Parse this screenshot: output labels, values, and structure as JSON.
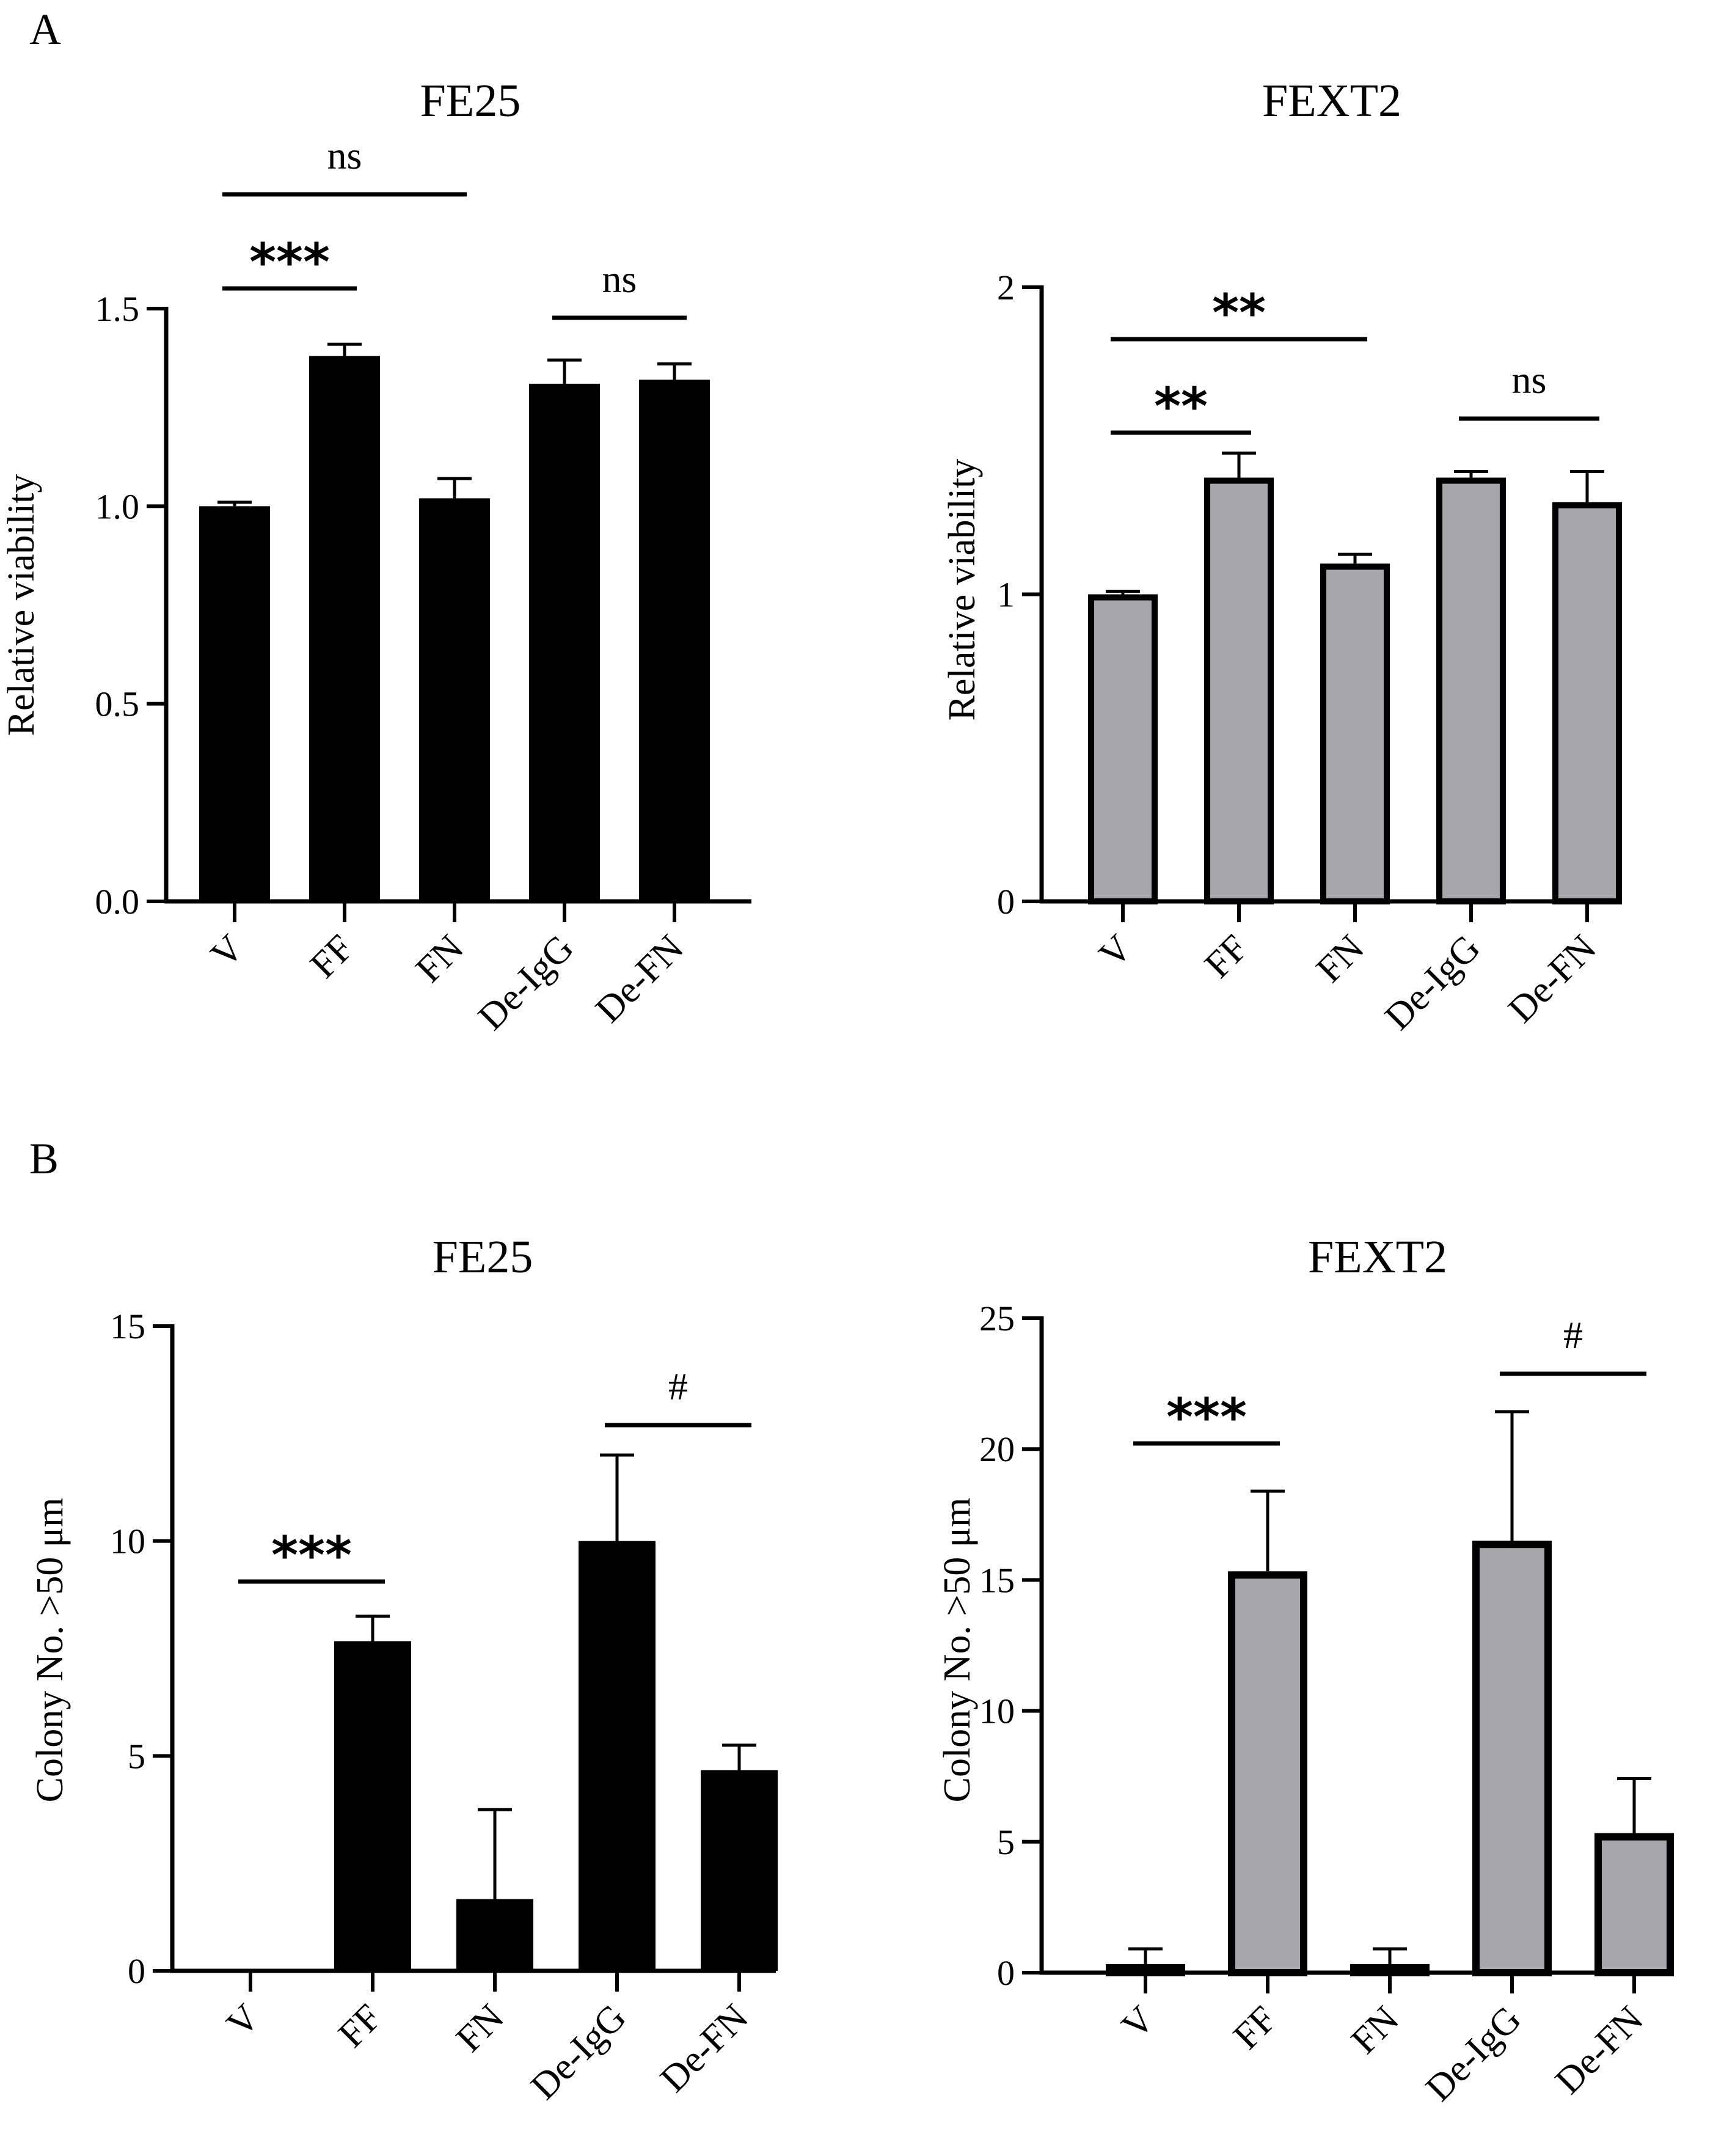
{
  "panels": [
    {
      "label": "A"
    },
    {
      "label": "B"
    }
  ],
  "colors": {
    "black_fill": "#000000",
    "gray_fill": "#a6a6ab",
    "axis": "#000000"
  },
  "chart_data": [
    {
      "id": "a-left",
      "type": "bar",
      "title": "FE25",
      "ylabel": "Relative viability",
      "categories": [
        "V",
        "FF",
        "FN",
        "De-IgG",
        "De-FN"
      ],
      "values": [
        1.0,
        1.38,
        1.02,
        1.31,
        1.32
      ],
      "errors": [
        0.01,
        0.03,
        0.05,
        0.06,
        0.04
      ],
      "ylim": [
        0,
        1.5
      ],
      "yticks": [
        0.0,
        0.5,
        1.0,
        1.5
      ],
      "ytick_labels": [
        "0.0",
        "0.5",
        "1.0",
        "1.5"
      ],
      "bar_style": "black",
      "significance": [
        {
          "from": "V",
          "to": "FN",
          "label": "ns",
          "kind": "ns"
        },
        {
          "from": "V",
          "to": "FF",
          "label": "***",
          "kind": "star"
        },
        {
          "from": "De-IgG",
          "to": "De-FN",
          "label": "ns",
          "kind": "ns"
        }
      ]
    },
    {
      "id": "a-right",
      "type": "bar",
      "title": "FEXT2",
      "ylabel": "Relative viability",
      "categories": [
        "V",
        "FF",
        "FN",
        "De-IgG",
        "De-FN"
      ],
      "values": [
        1.0,
        1.38,
        1.1,
        1.38,
        1.3
      ],
      "errors": [
        0.01,
        0.08,
        0.03,
        0.02,
        0.1
      ],
      "ylim": [
        0,
        2
      ],
      "yticks": [
        0,
        1,
        2
      ],
      "ytick_labels": [
        "0",
        "1",
        "2"
      ],
      "bar_style": "gray",
      "significance": [
        {
          "from": "V",
          "to": "FN",
          "label": "**",
          "kind": "star"
        },
        {
          "from": "V",
          "to": "FF",
          "label": "**",
          "kind": "star"
        },
        {
          "from": "De-IgG",
          "to": "De-FN",
          "label": "ns",
          "kind": "ns"
        }
      ]
    },
    {
      "id": "b-left",
      "type": "bar",
      "title": "FE25",
      "ylabel": "Colony No. >50 μm",
      "categories": [
        "V",
        "FF",
        "FN",
        "De-IgG",
        "De-FN"
      ],
      "values": [
        0,
        7.67,
        1.67,
        10.0,
        4.67
      ],
      "errors": [
        0,
        0.58,
        2.08,
        2.0,
        0.58
      ],
      "ylim": [
        0,
        15
      ],
      "yticks": [
        0,
        5,
        10,
        15
      ],
      "ytick_labels": [
        "0",
        "5",
        "10",
        "15"
      ],
      "bar_style": "black",
      "significance": [
        {
          "from": "V",
          "to": "FF",
          "label": "***",
          "kind": "star"
        },
        {
          "from": "De-IgG",
          "to": "De-FN",
          "label": "#",
          "kind": "hash"
        }
      ]
    },
    {
      "id": "b-right",
      "type": "bar",
      "title": "FEXT2",
      "ylabel": "Colony No. >50 μm",
      "categories": [
        "V",
        "FF",
        "FN",
        "De-IgG",
        "De-FN"
      ],
      "values": [
        0.33,
        15.33,
        0.33,
        16.5,
        5.33
      ],
      "errors": [
        0.58,
        3.06,
        0.58,
        4.93,
        2.08
      ],
      "ylim": [
        0,
        25
      ],
      "yticks": [
        0,
        5,
        10,
        15,
        20,
        25
      ],
      "ytick_labels": [
        "0",
        "5",
        "10",
        "15",
        "20",
        "25"
      ],
      "bar_style": "gray",
      "significance": [
        {
          "from": "V",
          "to": "FF",
          "label": "***",
          "kind": "star"
        },
        {
          "from": "De-IgG",
          "to": "De-FN",
          "label": "#",
          "kind": "hash"
        }
      ]
    }
  ]
}
